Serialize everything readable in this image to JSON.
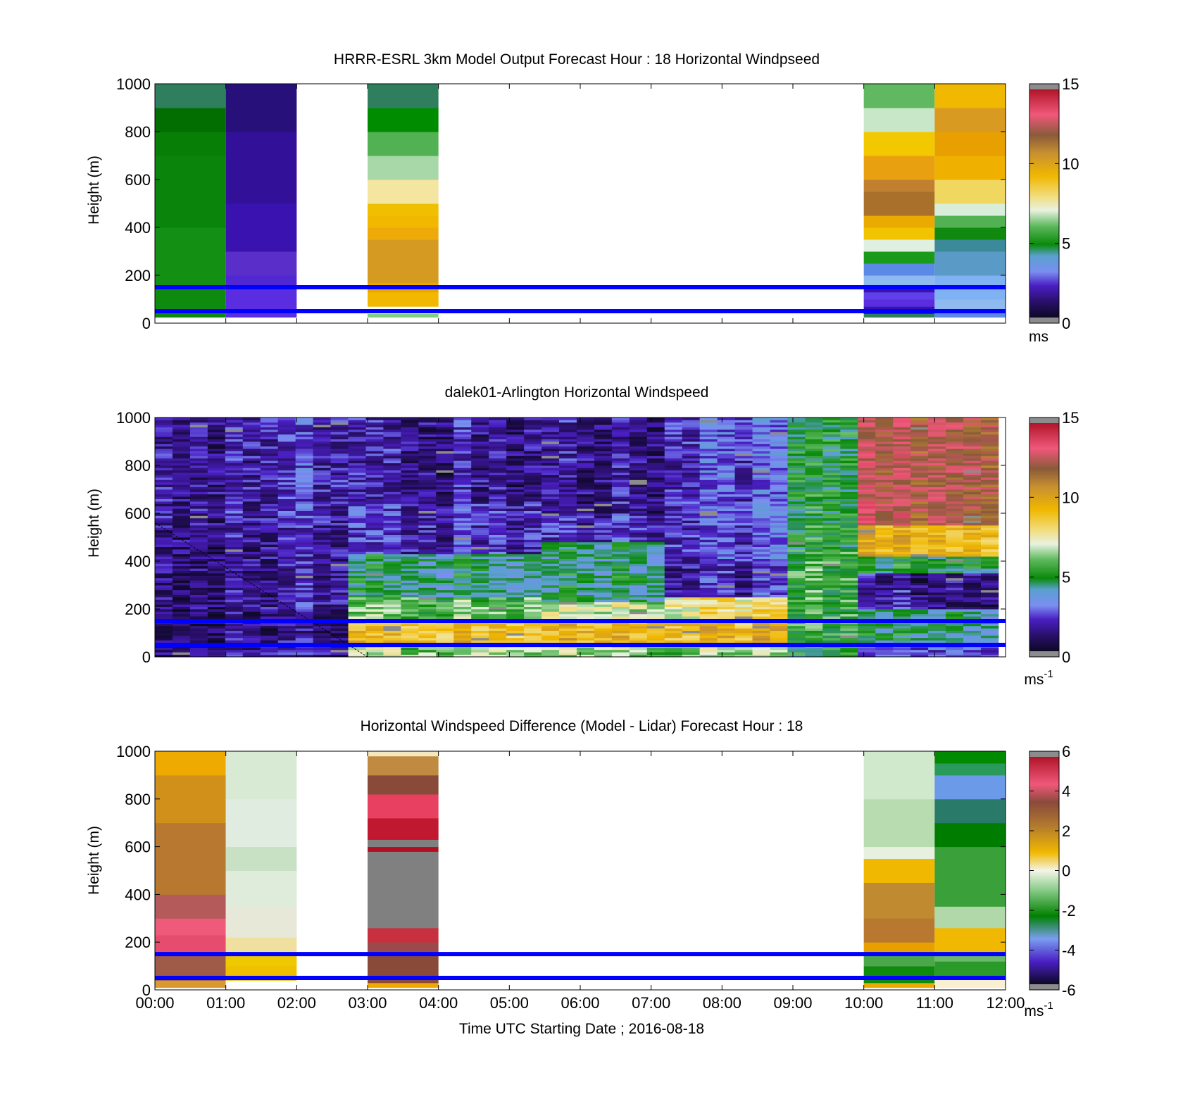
{
  "figure": {
    "xlabel": "Time UTC  Starting Date ; 2016-08-18",
    "x_ticks": [
      "00:00",
      "01:00",
      "02:00",
      "03:00",
      "04:00",
      "05:00",
      "06:00",
      "07:00",
      "08:00",
      "09:00",
      "10:00",
      "11:00",
      "12:00"
    ],
    "reference_lines": {
      "color": "#0000ff",
      "heights_m": [
        150,
        50
      ]
    }
  },
  "chart_data": [
    {
      "type": "heatmap",
      "title": "HRRR-ESRL 3km Model Output   Forecast Hour : 18 Horizontal Windpseed",
      "xlabel": "",
      "ylabel": "Height (m)",
      "ylim": [
        0,
        1000
      ],
      "y_ticks": [
        "0",
        "200",
        "400",
        "600",
        "800",
        "1000"
      ],
      "xlim_hours": [
        0,
        12
      ],
      "colorbar": {
        "min": 0,
        "max": 15,
        "ticks": [
          "0",
          "5",
          "10",
          "15"
        ],
        "unit": "ms"
      },
      "columns": [
        {
          "start_hour": 0,
          "end_hour": 1,
          "bottom_m": 25,
          "cells": [
            [
              25,
              45,
              "#0f8a0f"
            ],
            [
              45,
              150,
              "#0e8a0e"
            ],
            [
              150,
              400,
              "#138f13"
            ],
            [
              400,
              700,
              "#0a840a"
            ],
            [
              700,
              800,
              "#077f07"
            ],
            [
              800,
              900,
              "#026e02"
            ],
            [
              900,
              1000,
              "#2f7f5f"
            ]
          ]
        },
        {
          "start_hour": 1,
          "end_hour": 2,
          "bottom_m": 25,
          "cells": [
            [
              25,
              150,
              "#5a2ee0"
            ],
            [
              150,
              200,
              "#4f28d4"
            ],
            [
              200,
              300,
              "#5a2ec8"
            ],
            [
              300,
              500,
              "#3a12b0"
            ],
            [
              500,
              800,
              "#321098"
            ],
            [
              800,
              1000,
              "#28107a"
            ]
          ]
        },
        {
          "start_hour": 3,
          "end_hour": 4,
          "bottom_m": 25,
          "cells": [
            [
              25,
              40,
              "#7fcf7f"
            ],
            [
              40,
              70,
              "#ffffff"
            ],
            [
              70,
              130,
              "#f2b800"
            ],
            [
              130,
              170,
              "#e8a800"
            ],
            [
              170,
              350,
              "#d59a22"
            ],
            [
              350,
              400,
              "#eeaa08"
            ],
            [
              400,
              450,
              "#f2b800"
            ],
            [
              450,
              500,
              "#f0c000"
            ],
            [
              500,
              600,
              "#f4e6a0"
            ],
            [
              600,
              700,
              "#a8d8a8"
            ],
            [
              700,
              800,
              "#52b152"
            ],
            [
              800,
              900,
              "#008c00"
            ],
            [
              900,
              1000,
              "#2f7f5f"
            ]
          ]
        },
        {
          "start_hour": 10,
          "end_hour": 11,
          "bottom_m": 25,
          "cells": [
            [
              25,
              40,
              "#2f7f5f"
            ],
            [
              40,
              70,
              "#3a12b0"
            ],
            [
              70,
              100,
              "#5a2ee0"
            ],
            [
              100,
              130,
              "#6040e8"
            ],
            [
              130,
              160,
              "#3a12b0"
            ],
            [
              160,
              200,
              "#8fbaf0"
            ],
            [
              200,
              250,
              "#5a8ae6"
            ],
            [
              250,
              300,
              "#1a9a1a"
            ],
            [
              300,
              350,
              "#e0f0e0"
            ],
            [
              350,
              400,
              "#f2c400"
            ],
            [
              400,
              450,
              "#ebaa00"
            ],
            [
              450,
              550,
              "#a8702a"
            ],
            [
              550,
              600,
              "#c08030"
            ],
            [
              600,
              700,
              "#e8a010"
            ],
            [
              700,
              800,
              "#f2c800"
            ],
            [
              800,
              900,
              "#c8e6c8"
            ],
            [
              900,
              1000,
              "#60b860"
            ]
          ]
        },
        {
          "start_hour": 11,
          "end_hour": 12,
          "bottom_m": 25,
          "cells": [
            [
              25,
              50,
              "#5a8ae6"
            ],
            [
              50,
              100,
              "#8fbaf0"
            ],
            [
              100,
              200,
              "#7eb2f2"
            ],
            [
              200,
              300,
              "#5a9ac6"
            ],
            [
              300,
              350,
              "#3a8a9a"
            ],
            [
              350,
              400,
              "#0f8a0f"
            ],
            [
              400,
              450,
              "#52b152"
            ],
            [
              450,
              500,
              "#d8eed8"
            ],
            [
              500,
              600,
              "#f0d860"
            ],
            [
              600,
              700,
              "#f0b000"
            ],
            [
              700,
              800,
              "#e8a000"
            ],
            [
              800,
              900,
              "#d89a20"
            ],
            [
              900,
              1000,
              "#f0b800"
            ]
          ]
        }
      ],
      "reference_lines_m": [
        150,
        50
      ]
    },
    {
      "type": "heatmap",
      "title": "dalek01-Arlington  Horizontal Windspeed",
      "xlabel": "",
      "ylabel": "Height (m)",
      "ylim": [
        0,
        1000
      ],
      "y_ticks": [
        "0",
        "200",
        "400",
        "600",
        "800",
        "1000"
      ],
      "xlim_hours": [
        0,
        12
      ],
      "colorbar": {
        "min": 0,
        "max": 15,
        "ticks": [
          "0",
          "5",
          "10",
          "15"
        ],
        "unit": "ms-1"
      },
      "data_end_hour": 11.9,
      "time_periods": [
        {
          "start_hour": 0,
          "end_hour": 2.8,
          "layers": [
            [
              0,
              40,
              1.5
            ],
            [
              40,
              200,
              1.2
            ],
            [
              200,
              550,
              1.5
            ],
            [
              550,
              1000,
              1.8
            ]
          ]
        },
        {
          "start_hour": 2.8,
          "end_hour": 5.5,
          "layers": [
            [
              0,
              40,
              6.5
            ],
            [
              40,
              150,
              9.0
            ],
            [
              150,
              250,
              6.0
            ],
            [
              250,
              430,
              4.5
            ],
            [
              430,
              650,
              2.0
            ],
            [
              650,
              1000,
              1.5
            ]
          ]
        },
        {
          "start_hour": 5.5,
          "end_hour": 7.3,
          "layers": [
            [
              0,
              40,
              6.5
            ],
            [
              40,
              150,
              9.5
            ],
            [
              150,
              230,
              7.0
            ],
            [
              230,
              480,
              4.5
            ],
            [
              480,
              600,
              2.0
            ],
            [
              600,
              1000,
              1.5
            ]
          ]
        },
        {
          "start_hour": 7.3,
          "end_hour": 9.0,
          "layers": [
            [
              0,
              40,
              6.5
            ],
            [
              40,
              150,
              9.5
            ],
            [
              150,
              250,
              8.0
            ],
            [
              250,
              400,
              2.0
            ],
            [
              400,
              1000,
              2.5
            ]
          ]
        },
        {
          "start_hour": 9.0,
          "end_hour": 10.0,
          "layers": [
            [
              0,
              40,
              5.0
            ],
            [
              40,
              200,
              5.5
            ],
            [
              200,
              450,
              5.5
            ],
            [
              450,
              1000,
              5.0
            ]
          ]
        },
        {
          "start_hour": 10.0,
          "end_hour": 11.9,
          "layers": [
            [
              0,
              40,
              2.5
            ],
            [
              40,
              200,
              4.5
            ],
            [
              200,
              350,
              1.5
            ],
            [
              350,
              420,
              5.0
            ],
            [
              420,
              550,
              9.5
            ],
            [
              550,
              1000,
              12.5
            ]
          ]
        }
      ],
      "reference_lines_m": [
        150,
        50
      ]
    },
    {
      "type": "heatmap",
      "title": "Horizontal Windspeed Difference (Model - Lidar) Forecast Hour : 18",
      "xlabel": "Time UTC  Starting Date ; 2016-08-18",
      "ylabel": "Height (m)",
      "ylim": [
        0,
        1000
      ],
      "y_ticks": [
        "0",
        "200",
        "400",
        "600",
        "800",
        "1000"
      ],
      "xlim_hours": [
        0,
        12
      ],
      "colorbar": {
        "min": -6,
        "max": 6,
        "ticks": [
          "-6",
          "-4",
          "-2",
          "0",
          "2",
          "4",
          "6"
        ],
        "unit": "ms-1"
      },
      "columns": [
        {
          "start_hour": 0,
          "end_hour": 1,
          "bottom_m": 10,
          "cells": [
            [
              10,
              40,
              "#d89a30"
            ],
            [
              40,
              150,
              "#a05a48"
            ],
            [
              150,
              230,
              "#e64c6e"
            ],
            [
              230,
              300,
              "#ef5a7a"
            ],
            [
              300,
              400,
              "#b45a5a"
            ],
            [
              400,
              700,
              "#b87830"
            ],
            [
              700,
              900,
              "#d0901a"
            ],
            [
              900,
              1000,
              "#eeaa00"
            ]
          ]
        },
        {
          "start_hour": 1,
          "end_hour": 2,
          "bottom_m": 10,
          "cells": [
            [
              10,
              40,
              "#ffffff"
            ],
            [
              40,
              100,
              "#f0c000"
            ],
            [
              100,
              150,
              "#eec800"
            ],
            [
              150,
              220,
              "#f0e0a0"
            ],
            [
              220,
              350,
              "#e8e8d8"
            ],
            [
              350,
              500,
              "#dfecdc"
            ],
            [
              500,
              600,
              "#c8e0c4"
            ],
            [
              600,
              800,
              "#e0ece0"
            ],
            [
              800,
              1000,
              "#d8ead4"
            ]
          ]
        },
        {
          "start_hour": 3,
          "end_hour": 4,
          "bottom_m": 10,
          "cells": [
            [
              10,
              30,
              "#eeaa00"
            ],
            [
              30,
              150,
              "#8a4a3a"
            ],
            [
              150,
              200,
              "#9a4a4a"
            ],
            [
              200,
              260,
              "#c83040"
            ],
            [
              260,
              580,
              "#808080"
            ],
            [
              580,
              600,
              "#b01020"
            ],
            [
              600,
              630,
              "#808080"
            ],
            [
              630,
              720,
              "#c01830"
            ],
            [
              720,
              820,
              "#e84060"
            ],
            [
              820,
              900,
              "#8a4a3a"
            ],
            [
              900,
              980,
              "#c08a40"
            ],
            [
              980,
              1000,
              "#f4e8c0"
            ]
          ]
        },
        {
          "start_hour": 10,
          "end_hour": 11,
          "bottom_m": 10,
          "cells": [
            [
              10,
              30,
              "#eeaa00"
            ],
            [
              30,
              100,
              "#0f8a0f"
            ],
            [
              100,
              150,
              "#4aa84a"
            ],
            [
              150,
              200,
              "#e8a000"
            ],
            [
              200,
              300,
              "#b87830"
            ],
            [
              300,
              450,
              "#c08a30"
            ],
            [
              450,
              550,
              "#f0b800"
            ],
            [
              550,
              600,
              "#e8f0e0"
            ],
            [
              600,
              800,
              "#b8dcb0"
            ],
            [
              800,
              1000,
              "#d0e8cc"
            ]
          ]
        },
        {
          "start_hour": 11,
          "end_hour": 12,
          "bottom_m": 10,
          "cells": [
            [
              10,
              50,
              "#f8f0d0"
            ],
            [
              50,
              120,
              "#2a9a2a"
            ],
            [
              120,
              160,
              "#6ab86a"
            ],
            [
              160,
              260,
              "#f0b800"
            ],
            [
              260,
              350,
              "#b0d8a8"
            ],
            [
              350,
              600,
              "#3aa03a"
            ],
            [
              600,
              700,
              "#007c00"
            ],
            [
              700,
              800,
              "#2a7a6a"
            ],
            [
              800,
              900,
              "#6a9ae8"
            ],
            [
              900,
              950,
              "#2a9a5a"
            ],
            [
              950,
              1000,
              "#008a00"
            ]
          ]
        }
      ],
      "reference_lines_m": [
        150,
        50
      ]
    }
  ]
}
